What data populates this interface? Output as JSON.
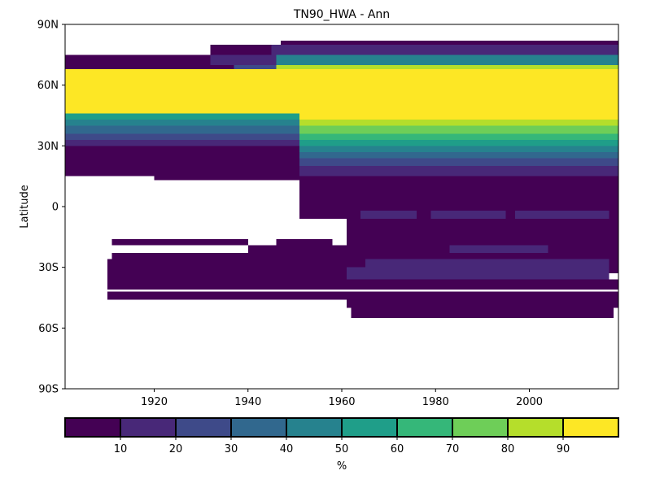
{
  "chart_data": {
    "type": "heatmap",
    "title": "TN90_HWA - Ann",
    "xlabel": "",
    "ylabel": "Latitude",
    "xlim": [
      1901,
      2019
    ],
    "ylim": [
      -90,
      90
    ],
    "x_ticks": [
      {
        "value": 1920,
        "label": "1920"
      },
      {
        "value": 1940,
        "label": "1940"
      },
      {
        "value": 1960,
        "label": "1960"
      },
      {
        "value": 1980,
        "label": "1980"
      },
      {
        "value": 2000,
        "label": "2000"
      }
    ],
    "y_ticks": [
      {
        "value": 90,
        "label": "90N"
      },
      {
        "value": 60,
        "label": "60N"
      },
      {
        "value": 30,
        "label": "30N"
      },
      {
        "value": 0,
        "label": "0"
      },
      {
        "value": -30,
        "label": "30S"
      },
      {
        "value": -60,
        "label": "60S"
      },
      {
        "value": -90,
        "label": "90S"
      }
    ],
    "colorbar": {
      "label": "%",
      "range": [
        0,
        100
      ],
      "boundaries": [
        0,
        10,
        20,
        30,
        40,
        50,
        60,
        70,
        80,
        90,
        100
      ],
      "tick_values": [
        10,
        20,
        30,
        40,
        50,
        60,
        70,
        80,
        90
      ],
      "tick_labels": [
        "10",
        "20",
        "30",
        "40",
        "50",
        "60",
        "70",
        "80",
        "90"
      ],
      "colors": [
        "#440154",
        "#482878",
        "#3e4a89",
        "#31688e",
        "#26828e",
        "#1f9e89",
        "#35b779",
        "#6ece58",
        "#b5de2b",
        "#fde725"
      ]
    },
    "lat_bands": [
      {
        "lat_min": 65,
        "lat_max": 70,
        "segments": [
          {
            "x0": 1901,
            "x1": 1937,
            "value": 5
          },
          {
            "x0": 1937,
            "x1": 1946,
            "value": 25
          },
          {
            "x0": 1946,
            "x1": 2019,
            "value": 88
          }
        ]
      },
      {
        "lat_min": 70,
        "lat_max": 75,
        "segments": [
          {
            "x0": 1901,
            "x1": 1932,
            "value": 5
          },
          {
            "x0": 1932,
            "x1": 1946,
            "value": 15
          },
          {
            "x0": 1946,
            "x1": 2019,
            "value": 45
          }
        ]
      },
      {
        "lat_min": 75,
        "lat_max": 80,
        "segments": [
          {
            "x0": 1932,
            "x1": 1945,
            "value": 5
          },
          {
            "x0": 1945,
            "x1": 2019,
            "value": 15
          }
        ]
      },
      {
        "lat_min": 80,
        "lat_max": 82,
        "segments": [
          {
            "x0": 1947,
            "x1": 2019,
            "value": 5
          }
        ]
      },
      {
        "lat_min": 46,
        "lat_max": 68,
        "segments": [
          {
            "x0": 1901,
            "x1": 2019,
            "value": 95
          }
        ]
      },
      {
        "lat_min": 43,
        "lat_max": 46,
        "segments": [
          {
            "x0": 1901,
            "x1": 1951,
            "value": 55
          },
          {
            "x0": 1951,
            "x1": 2019,
            "value": 95
          }
        ]
      },
      {
        "lat_min": 40,
        "lat_max": 43,
        "segments": [
          {
            "x0": 1901,
            "x1": 1951,
            "value": 45
          },
          {
            "x0": 1951,
            "x1": 2019,
            "value": 85
          }
        ]
      },
      {
        "lat_min": 36,
        "lat_max": 40,
        "segments": [
          {
            "x0": 1901,
            "x1": 1951,
            "value": 35
          },
          {
            "x0": 1951,
            "x1": 2019,
            "value": 75
          }
        ]
      },
      {
        "lat_min": 33,
        "lat_max": 36,
        "segments": [
          {
            "x0": 1901,
            "x1": 1951,
            "value": 25
          },
          {
            "x0": 1951,
            "x1": 2019,
            "value": 65
          }
        ]
      },
      {
        "lat_min": 30,
        "lat_max": 33,
        "segments": [
          {
            "x0": 1901,
            "x1": 1951,
            "value": 15
          },
          {
            "x0": 1951,
            "x1": 2019,
            "value": 55
          }
        ]
      },
      {
        "lat_min": 27,
        "lat_max": 30,
        "segments": [
          {
            "x0": 1901,
            "x1": 1951,
            "value": 5
          },
          {
            "x0": 1951,
            "x1": 2019,
            "value": 45
          }
        ]
      },
      {
        "lat_min": 24,
        "lat_max": 27,
        "segments": [
          {
            "x0": 1901,
            "x1": 1951,
            "value": 5
          },
          {
            "x0": 1951,
            "x1": 2019,
            "value": 35
          }
        ]
      },
      {
        "lat_min": 20,
        "lat_max": 24,
        "segments": [
          {
            "x0": 1901,
            "x1": 1951,
            "value": 5
          },
          {
            "x0": 1951,
            "x1": 2019,
            "value": 25
          }
        ]
      },
      {
        "lat_min": 15,
        "lat_max": 20,
        "segments": [
          {
            "x0": 1901,
            "x1": 1951,
            "value": 5
          },
          {
            "x0": 1951,
            "x1": 2019,
            "value": 15
          }
        ]
      },
      {
        "lat_min": 13,
        "lat_max": 15,
        "segments": [
          {
            "x0": 1920,
            "x1": 1951,
            "value": 5
          },
          {
            "x0": 1951,
            "x1": 2019,
            "value": 5
          }
        ]
      },
      {
        "lat_min": 0,
        "lat_max": 13,
        "segments": [
          {
            "x0": 1951,
            "x1": 2019,
            "value": 5
          }
        ]
      },
      {
        "lat_min": -2,
        "lat_max": 0,
        "segments": [
          {
            "x0": 1951,
            "x1": 2019,
            "value": 5
          }
        ]
      },
      {
        "lat_min": -6,
        "lat_max": -2,
        "segments": [
          {
            "x0": 1951,
            "x1": 1961,
            "value": 5
          },
          {
            "x0": 1961,
            "x1": 1964,
            "value": 5
          },
          {
            "x0": 1964,
            "x1": 1976,
            "value": 15
          },
          {
            "x0": 1976,
            "x1": 1979,
            "value": 5
          },
          {
            "x0": 1979,
            "x1": 1995,
            "value": 15
          },
          {
            "x0": 1995,
            "x1": 1997,
            "value": 5
          },
          {
            "x0": 1997,
            "x1": 2017,
            "value": 15
          },
          {
            "x0": 2017,
            "x1": 2019,
            "value": 5
          }
        ]
      },
      {
        "lat_min": -16,
        "lat_max": -6,
        "segments": [
          {
            "x0": 1961,
            "x1": 2019,
            "value": 5
          }
        ]
      },
      {
        "lat_min": -19,
        "lat_max": -16,
        "segments": [
          {
            "x0": 1911,
            "x1": 1940,
            "value": 5
          },
          {
            "x0": 1946,
            "x1": 1958,
            "value": 5
          },
          {
            "x0": 1961,
            "x1": 2019,
            "value": 5
          }
        ]
      },
      {
        "lat_min": -23,
        "lat_max": -19,
        "segments": [
          {
            "x0": 1940,
            "x1": 1961,
            "value": 5
          },
          {
            "x0": 1961,
            "x1": 1983,
            "value": 5
          },
          {
            "x0": 1983,
            "x1": 2004,
            "value": 15
          },
          {
            "x0": 2004,
            "x1": 2019,
            "value": 5
          }
        ]
      },
      {
        "lat_min": -26,
        "lat_max": -23,
        "segments": [
          {
            "x0": 1911,
            "x1": 1961,
            "value": 5
          },
          {
            "x0": 1961,
            "x1": 2019,
            "value": 5
          }
        ]
      },
      {
        "lat_min": -30,
        "lat_max": -26,
        "segments": [
          {
            "x0": 1910,
            "x1": 1961,
            "value": 5
          },
          {
            "x0": 1961,
            "x1": 1965,
            "value": 5
          },
          {
            "x0": 1965,
            "x1": 2017,
            "value": 15
          },
          {
            "x0": 2017,
            "x1": 2019,
            "value": 5
          }
        ]
      },
      {
        "lat_min": -33,
        "lat_max": -30,
        "segments": [
          {
            "x0": 1910,
            "x1": 1961,
            "value": 5
          },
          {
            "x0": 1961,
            "x1": 2017,
            "value": 15
          },
          {
            "x0": 2017,
            "x1": 2019,
            "value": 5
          }
        ]
      },
      {
        "lat_min": -36,
        "lat_max": -33,
        "segments": [
          {
            "x0": 1910,
            "x1": 1961,
            "value": 5
          },
          {
            "x0": 1961,
            "x1": 2017,
            "value": 15
          }
        ]
      },
      {
        "lat_min": -39,
        "lat_max": -36,
        "segments": [
          {
            "x0": 1910,
            "x1": 1961,
            "value": 5
          },
          {
            "x0": 1961,
            "x1": 2019,
            "value": 5
          }
        ]
      },
      {
        "lat_min": -41,
        "lat_max": -39,
        "segments": [
          {
            "x0": 1910,
            "x1": 2019,
            "value": 5
          }
        ]
      },
      {
        "lat_min": -46,
        "lat_max": -42,
        "segments": [
          {
            "x0": 1910,
            "x1": 2019,
            "value": 5
          }
        ]
      },
      {
        "lat_min": -50,
        "lat_max": -46,
        "segments": [
          {
            "x0": 1961,
            "x1": 2019,
            "value": 5
          }
        ]
      },
      {
        "lat_min": -55,
        "lat_max": -50,
        "segments": [
          {
            "x0": 1962,
            "x1": 2018,
            "value": 5
          }
        ]
      }
    ]
  }
}
